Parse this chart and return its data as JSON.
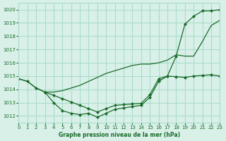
{
  "background_color": "#d8f0e8",
  "grid_color": "#aaddcc",
  "line_color": "#1a6b2a",
  "title": "Graphe pression niveau de la mer (hPa)",
  "xlim": [
    0,
    23
  ],
  "ylim": [
    1011.5,
    1020.5
  ],
  "yticks": [
    1012,
    1013,
    1014,
    1015,
    1016,
    1017,
    1018,
    1019,
    1020
  ],
  "xticks": [
    0,
    1,
    2,
    3,
    4,
    5,
    6,
    7,
    8,
    9,
    10,
    11,
    12,
    13,
    14,
    15,
    16,
    17,
    18,
    19,
    20,
    21,
    22,
    23
  ],
  "line1_x": [
    0,
    1,
    2,
    3
  ],
  "line1_y": [
    1014.8,
    1014.6,
    1014.1,
    1013.8
  ],
  "line2_x": [
    3,
    4,
    5,
    6,
    7,
    8,
    9,
    10,
    11,
    12,
    13,
    14,
    15,
    16,
    17,
    18,
    19,
    20,
    21,
    22,
    23
  ],
  "line2_y": [
    1013.8,
    1013.0,
    1012.4,
    1012.2,
    1012.1,
    1012.2,
    1011.9,
    1012.2,
    1012.5,
    1012.6,
    1012.7,
    1012.8,
    1013.4,
    1014.6,
    1015.0,
    1016.5,
    1018.9,
    1019.5,
    1019.9,
    1019.9,
    1020.0
  ],
  "line3_x": [
    0,
    1,
    2,
    3,
    4,
    5,
    6,
    7,
    8,
    9,
    10,
    11,
    12,
    13,
    14,
    15,
    16,
    17,
    18,
    19,
    20,
    21,
    22,
    23
  ],
  "line3_y": [
    1014.8,
    1014.6,
    1014.1,
    1013.8,
    1013.8,
    1013.9,
    1014.1,
    1014.3,
    1014.6,
    1014.9,
    1015.2,
    1015.4,
    1015.6,
    1015.8,
    1015.9,
    1015.9,
    1016.0,
    1016.2,
    1016.6,
    1016.5,
    1016.5,
    1017.6,
    1018.8,
    1019.2
  ],
  "line4_x": [
    3,
    4,
    5,
    6,
    7,
    8,
    9,
    10,
    11,
    12,
    13,
    14,
    15,
    16,
    17,
    18,
    19,
    20,
    21,
    22,
    23
  ],
  "line4_y": [
    1013.8,
    1013.55,
    1013.3,
    1013.05,
    1012.8,
    1012.55,
    1012.3,
    1012.55,
    1012.8,
    1012.85,
    1012.9,
    1012.95,
    1013.6,
    1014.8,
    1015.0,
    1014.95,
    1014.9,
    1015.0,
    1015.05,
    1015.1,
    1015.0
  ]
}
